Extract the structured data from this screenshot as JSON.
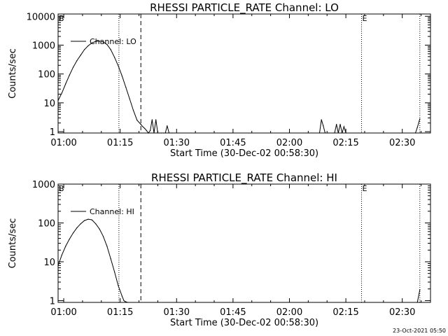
{
  "stamp": "23-Oct-2021 05:50",
  "chart_data": [
    {
      "type": "line",
      "title": "RHESSI PARTICLE_RATE Channel: LO",
      "xlabel": "Start Time (30-Dec-02 00:58:30)",
      "ylabel": "Counts/sec",
      "yscale": "log",
      "ylim": [
        0.9,
        12000
      ],
      "xlim": [
        "00:58:30",
        "02:37:30"
      ],
      "x_ticks": [
        "01:00",
        "01:15",
        "01:30",
        "01:45",
        "02:00",
        "02:15",
        "02:30"
      ],
      "y_ticks": [
        "1",
        "10",
        "100",
        "1000",
        "10000"
      ],
      "grid": false,
      "legend": "upper-left",
      "markers": [
        {
          "label": "B",
          "time": "00:58:30",
          "style": "none"
        },
        {
          "label": "",
          "time": "01:14:40",
          "style": "dotted"
        },
        {
          "label": "",
          "time": "01:20:30",
          "style": "dashed"
        },
        {
          "label": "E",
          "time": "02:19:10",
          "style": "dotted"
        },
        {
          "label": "",
          "time": "02:34:40",
          "style": "dotted"
        }
      ],
      "series": [
        {
          "name": "Channel: LO",
          "x": [
            "00:58:30",
            "00:59:30",
            "01:00:30",
            "01:01:30",
            "01:02:30",
            "01:03:30",
            "01:04:30",
            "01:05:30",
            "01:06:30",
            "01:07:30",
            "01:08:30",
            "01:09:30",
            "01:10:30",
            "01:11:30",
            "01:12:30",
            "01:13:30",
            "01:14:30",
            "01:15:30",
            "01:16:30",
            "01:17:30",
            "01:18:30",
            "01:19:30",
            "01:20:30",
            "01:21:00",
            "01:21:30",
            "01:22:00",
            "01:22:30",
            "01:23:00",
            "01:23:30",
            "01:24:00",
            "01:24:30",
            "01:25:00",
            "01:25:30",
            "01:26:00",
            "01:26:30",
            "01:27:00",
            "01:27:30",
            "01:28:00",
            "01:28:30",
            "01:29:00",
            "02:08:00",
            "02:08:30",
            "02:09:00",
            "02:09:30",
            "02:10:00",
            "02:10:30",
            "02:12:00",
            "02:12:30",
            "02:13:00",
            "02:13:30",
            "02:14:00",
            "02:14:30",
            "02:15:00",
            "02:33:30",
            "02:34:00",
            "02:34:40"
          ],
          "values": [
            12,
            22,
            45,
            90,
            170,
            290,
            450,
            700,
            950,
            1200,
            1350,
            1380,
            1300,
            1050,
            700,
            380,
            190,
            85,
            35,
            14,
            5.5,
            2.5,
            1.8,
            1.5,
            1.3,
            1.1,
            0.9,
            1.1,
            2.6,
            0.9,
            2.6,
            0.9,
            0.9,
            0.9,
            0.9,
            0.9,
            1.6,
            0.9,
            0.9,
            0.9,
            0.9,
            2.6,
            1.6,
            0.9,
            0.9,
            0.9,
            0.9,
            1.8,
            0.9,
            1.8,
            0.9,
            1.5,
            0.9,
            0.9,
            1.4,
            2.8
          ]
        }
      ]
    },
    {
      "type": "line",
      "title": "RHESSI PARTICLE_RATE Channel: HI",
      "xlabel": "Start Time (30-Dec-02 00:58:30)",
      "ylabel": "Counts/sec",
      "yscale": "log",
      "ylim": [
        0.9,
        1000
      ],
      "xlim": [
        "00:58:30",
        "02:37:30"
      ],
      "x_ticks": [
        "01:00",
        "01:15",
        "01:30",
        "01:45",
        "02:00",
        "02:15",
        "02:30"
      ],
      "y_ticks": [
        "1",
        "10",
        "100",
        "1000"
      ],
      "grid": false,
      "legend": "upper-left",
      "markers": [
        {
          "label": "B",
          "time": "00:58:30",
          "style": "none"
        },
        {
          "label": "",
          "time": "01:14:40",
          "style": "dotted"
        },
        {
          "label": "",
          "time": "01:20:30",
          "style": "dashed"
        },
        {
          "label": "E",
          "time": "02:19:10",
          "style": "dotted"
        },
        {
          "label": "",
          "time": "02:34:40",
          "style": "dotted"
        }
      ],
      "series": [
        {
          "name": "Channel: HI",
          "x": [
            "00:58:30",
            "00:59:30",
            "01:00:30",
            "01:01:30",
            "01:02:30",
            "01:03:30",
            "01:04:30",
            "01:05:30",
            "01:06:30",
            "01:07:30",
            "01:08:30",
            "01:09:30",
            "01:10:30",
            "01:11:30",
            "01:12:30",
            "01:13:30",
            "01:14:30",
            "01:15:30",
            "01:16:00",
            "01:16:20",
            "01:16:40",
            "01:17:00",
            "02:34:00",
            "02:34:40"
          ],
          "values": [
            8,
            15,
            25,
            38,
            55,
            75,
            95,
            115,
            125,
            120,
            95,
            70,
            45,
            25,
            12,
            5.5,
            2.4,
            1.3,
            1.0,
            0.95,
            0.92,
            0.9,
            0.9,
            1.9
          ]
        }
      ]
    }
  ]
}
